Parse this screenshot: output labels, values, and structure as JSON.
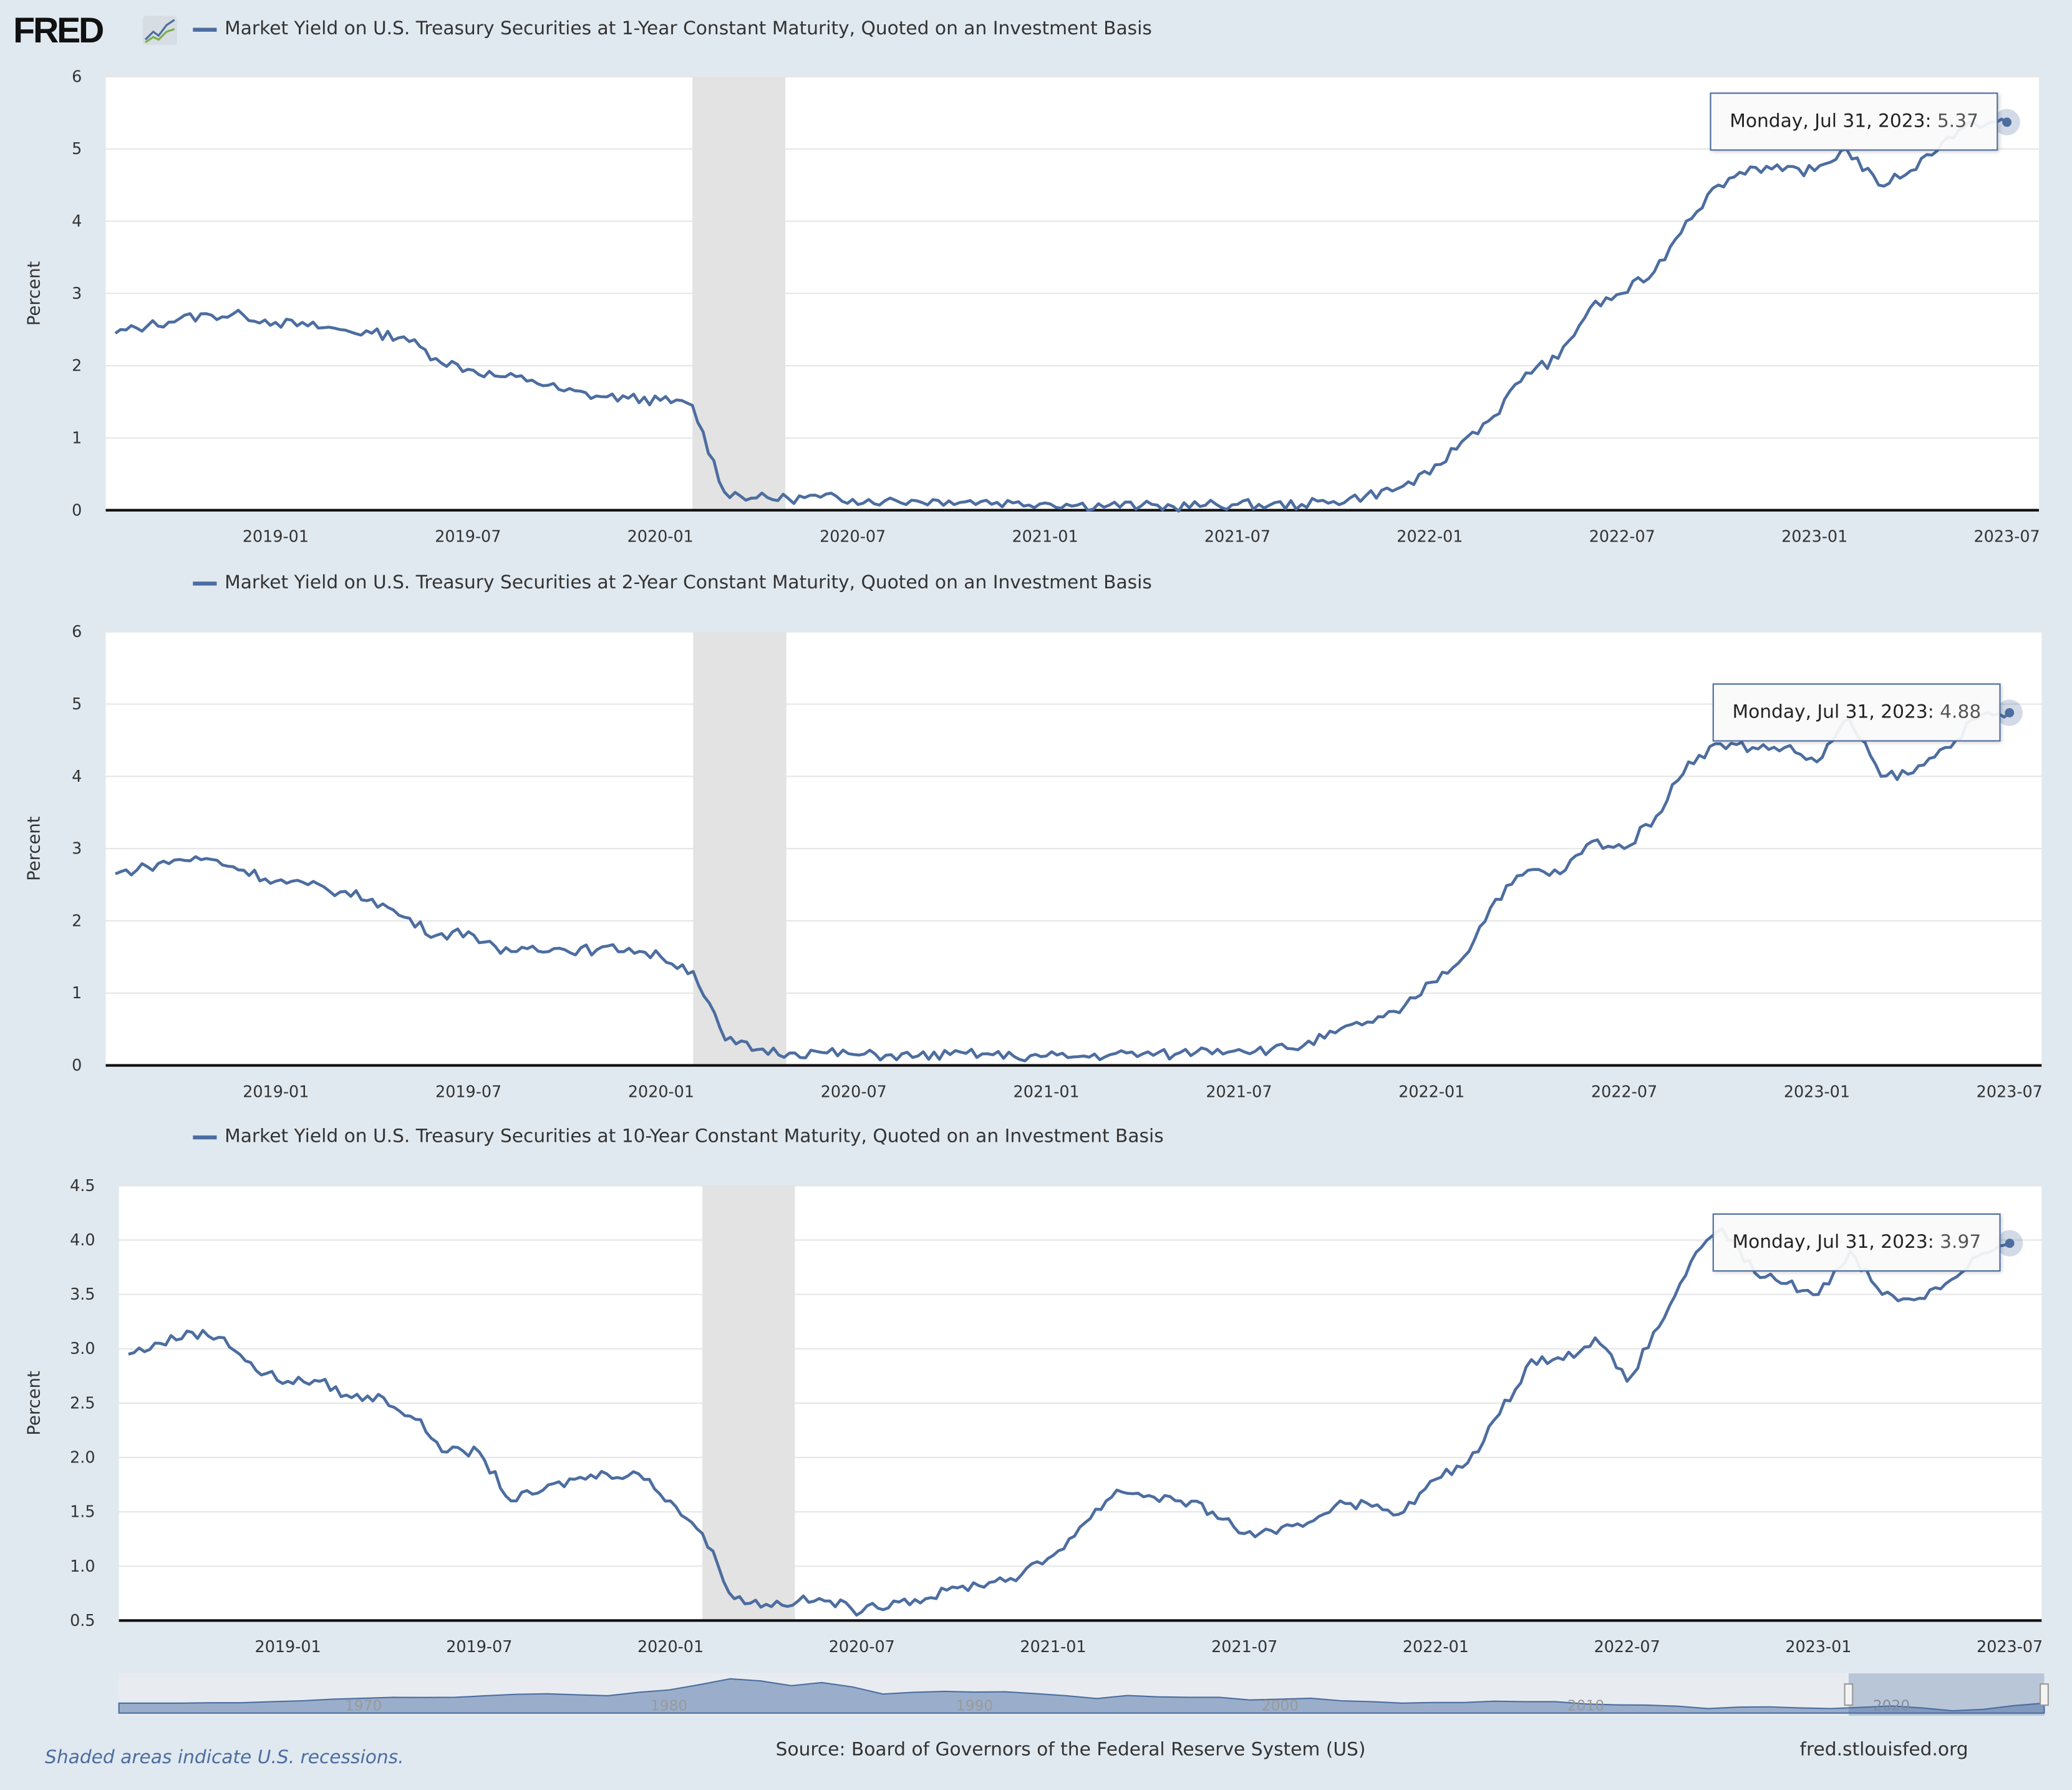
{
  "header": {
    "logo": "FRED",
    "logo_icon": "fred-chart-icon"
  },
  "colors": {
    "series": "#4c6da0",
    "recession": "#e3e3e3",
    "background": "#e1e9f0",
    "navigator_fill": "#9aaecb"
  },
  "chart_data": [
    {
      "type": "line",
      "title": "Market Yield on U.S. Treasury Securities at 1-Year Constant Maturity, Quoted on an Investment Basis",
      "ylabel": "Percent",
      "ylim": [
        0,
        6
      ],
      "yticks": [
        "0",
        "1",
        "2",
        "3",
        "4",
        "5",
        "6"
      ],
      "x_start": "2018-08",
      "x_step": "month",
      "xticks": [
        "2019-01",
        "2019-07",
        "2020-01",
        "2020-07",
        "2021-01",
        "2021-07",
        "2022-01",
        "2022-07",
        "2023-01",
        "2023-07"
      ],
      "recession": [
        "2020-02",
        "2020-04"
      ],
      "values": [
        2.45,
        2.55,
        2.65,
        2.7,
        2.7,
        2.6,
        2.55,
        2.5,
        2.45,
        2.4,
        2.1,
        1.95,
        1.85,
        1.8,
        1.65,
        1.58,
        1.55,
        1.52,
        1.45,
        0.25,
        0.17,
        0.16,
        0.18,
        0.15,
        0.13,
        0.13,
        0.13,
        0.12,
        0.1,
        0.1,
        0.07,
        0.07,
        0.06,
        0.05,
        0.07,
        0.08,
        0.07,
        0.08,
        0.12,
        0.2,
        0.3,
        0.5,
        0.95,
        1.3,
        1.9,
        2.1,
        2.8,
        3.0,
        3.3,
        4.0,
        4.5,
        4.75,
        4.7,
        4.7,
        5.0,
        4.5,
        4.7,
        5.1,
        5.35,
        5.37
      ],
      "tooltip": {
        "date": "Monday, Jul 31, 2023:",
        "value": "5.37"
      }
    },
    {
      "type": "line",
      "title": "Market Yield on U.S. Treasury Securities at 2-Year Constant Maturity, Quoted on an Investment Basis",
      "ylabel": "Percent",
      "ylim": [
        0,
        6
      ],
      "yticks": [
        "0",
        "1",
        "2",
        "3",
        "4",
        "5",
        "6"
      ],
      "x_start": "2018-08",
      "x_step": "month",
      "xticks": [
        "2019-01",
        "2019-07",
        "2020-01",
        "2020-07",
        "2021-01",
        "2021-07",
        "2022-01",
        "2022-07",
        "2023-01",
        "2023-07"
      ],
      "recession": [
        "2020-02",
        "2020-04"
      ],
      "values": [
        2.65,
        2.75,
        2.85,
        2.85,
        2.7,
        2.55,
        2.5,
        2.4,
        2.3,
        2.05,
        1.8,
        1.85,
        1.55,
        1.65,
        1.6,
        1.6,
        1.62,
        1.5,
        1.3,
        0.35,
        0.22,
        0.17,
        0.18,
        0.15,
        0.14,
        0.13,
        0.15,
        0.16,
        0.12,
        0.13,
        0.12,
        0.15,
        0.16,
        0.15,
        0.22,
        0.22,
        0.22,
        0.27,
        0.45,
        0.6,
        0.73,
        1.15,
        1.5,
        2.3,
        2.7,
        2.65,
        3.1,
        3.0,
        3.45,
        4.2,
        4.45,
        4.4,
        4.4,
        4.2,
        4.8,
        4.0,
        4.05,
        4.4,
        4.8,
        4.88
      ],
      "tooltip": {
        "date": "Monday, Jul 31, 2023:",
        "value": "4.88"
      }
    },
    {
      "type": "line",
      "title": "Market Yield on U.S. Treasury Securities at 10-Year Constant Maturity, Quoted on an Investment Basis",
      "ylabel": "Percent",
      "ylim": [
        0.5,
        4.5
      ],
      "yticks": [
        "0.5",
        "1.0",
        "1.5",
        "2.0",
        "2.5",
        "3.0",
        "3.5",
        "4.0",
        "4.5"
      ],
      "x_start": "2018-08",
      "x_step": "month",
      "xticks": [
        "2019-01",
        "2019-07",
        "2020-01",
        "2020-07",
        "2021-01",
        "2021-07",
        "2022-01",
        "2022-07",
        "2023-01",
        "2023-07"
      ],
      "recession": [
        "2020-02",
        "2020-04"
      ],
      "values": [
        2.95,
        3.05,
        3.15,
        3.1,
        2.8,
        2.7,
        2.7,
        2.55,
        2.55,
        2.35,
        2.05,
        2.05,
        1.6,
        1.7,
        1.8,
        1.85,
        1.85,
        1.6,
        1.3,
        0.7,
        0.65,
        0.68,
        0.68,
        0.58,
        0.68,
        0.7,
        0.8,
        0.85,
        0.92,
        1.1,
        1.4,
        1.7,
        1.65,
        1.6,
        1.5,
        1.3,
        1.3,
        1.4,
        1.6,
        1.55,
        1.5,
        1.8,
        1.95,
        2.4,
        2.9,
        2.9,
        3.1,
        2.7,
        3.2,
        3.8,
        4.1,
        3.7,
        3.6,
        3.5,
        3.9,
        3.5,
        3.45,
        3.6,
        3.85,
        3.97
      ],
      "tooltip": {
        "date": "Monday, Jul 31, 2023:",
        "value": "3.97"
      }
    }
  ],
  "navigator": {
    "labels": [
      "1970",
      "1980",
      "1990",
      "2000",
      "2010",
      "2020"
    ],
    "start_year": 1962,
    "values": [
      4.0,
      4.0,
      4.0,
      4.2,
      4.2,
      4.6,
      5.0,
      5.6,
      6.0,
      6.4,
      6.3,
      6.4,
      7.0,
      7.6,
      7.8,
      7.4,
      7.0,
      8.4,
      9.4,
      11.5,
      13.9,
      13.0,
      11.1,
      12.4,
      10.6,
      7.7,
      8.4,
      8.8,
      8.5,
      8.6,
      7.9,
      7.0,
      5.9,
      7.1,
      6.6,
      6.4,
      6.4,
      5.3,
      5.6,
      6.0,
      5.0,
      4.6,
      4.0,
      4.3,
      4.3,
      4.8,
      4.6,
      4.6,
      3.7,
      3.3,
      3.2,
      2.8,
      1.8,
      2.4,
      2.5,
      2.1,
      1.8,
      2.3,
      2.9,
      2.1,
      0.9,
      1.5,
      3.0,
      4.0
    ]
  },
  "footer": {
    "recession_note": "Shaded areas indicate U.S. recessions.",
    "source": "Source: Board of Governors of the Federal Reserve System (US)",
    "site": "fred.stlouisfed.org"
  }
}
